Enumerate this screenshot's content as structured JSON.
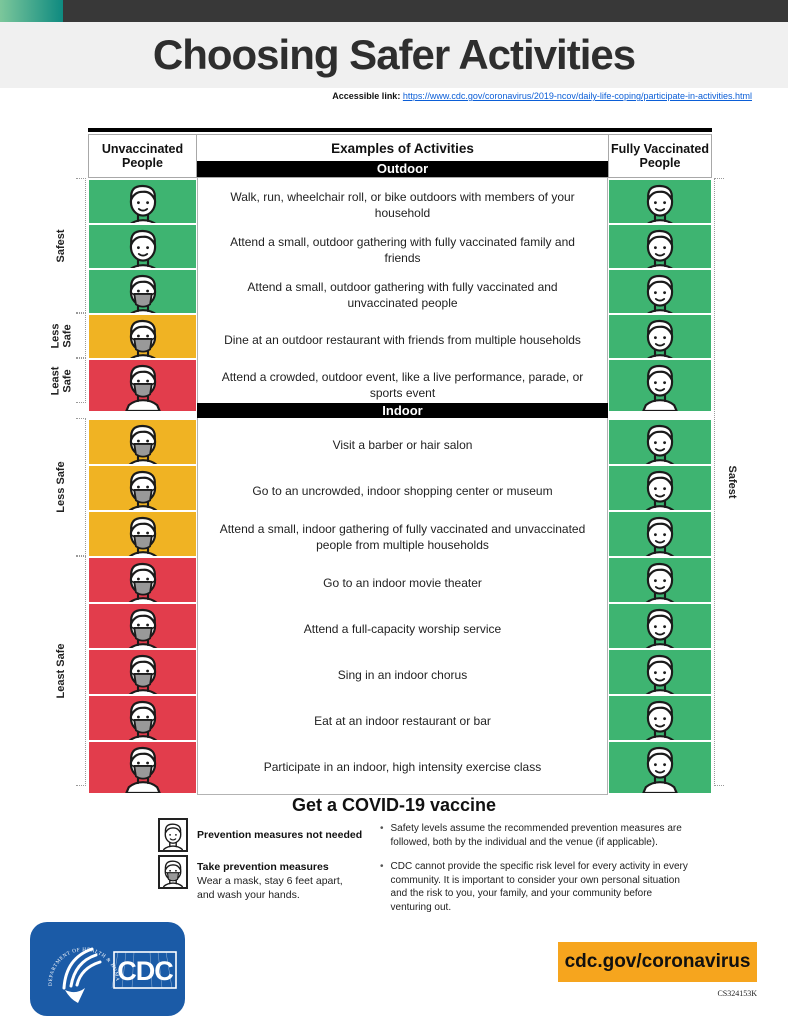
{
  "page": {
    "title": "Choosing Safer Activities",
    "accessible_link_label": "Accessible link:",
    "accessible_link_url": "https://www.cdc.gov/coronavirus/2019-ncov/daily-life-coping/participate-in-activities.html",
    "doc_id": "CS324153K",
    "footer_url": "cdc.gov/coronavirus",
    "cdc_logo_text": "CDC",
    "cdc_seal_text": "DEPARTMENT OF HEALTH & HUMAN SERVICES • USA"
  },
  "colors": {
    "green": "#3EB471",
    "yellow": "#F0B323",
    "red": "#E23D4C",
    "orange": "#F6A51E",
    "topbar": "#383838",
    "teal_start": "#7CC79B",
    "teal_end": "#0E8A80",
    "cdc_blue": "#1B5BA7",
    "mask_gray": "#999999"
  },
  "table": {
    "col_unvaccinated": "Unvaccinated People",
    "col_examples": "Examples of Activities",
    "col_vaccinated": "Fully Vaccinated People",
    "sections": [
      {
        "label": "Outdoor",
        "rows": [
          {
            "text": "Walk, run, wheelchair roll, or bike outdoors with members of your household",
            "unvaccinated": {
              "color": "green",
              "mask": false
            },
            "vaccinated": {
              "color": "green",
              "mask": false
            }
          },
          {
            "text": "Attend a small, outdoor gathering with fully vaccinated family and friends",
            "unvaccinated": {
              "color": "green",
              "mask": false
            },
            "vaccinated": {
              "color": "green",
              "mask": false
            }
          },
          {
            "text": "Attend a small, outdoor gathering with fully vaccinated and unvaccinated people",
            "unvaccinated": {
              "color": "green",
              "mask": true
            },
            "vaccinated": {
              "color": "green",
              "mask": false
            }
          },
          {
            "text": "Dine at an outdoor restaurant with friends from multiple households",
            "unvaccinated": {
              "color": "yellow",
              "mask": true
            },
            "vaccinated": {
              "color": "green",
              "mask": false
            }
          },
          {
            "text": "Attend a crowded, outdoor event, like a live performance, parade, or sports event",
            "unvaccinated": {
              "color": "red",
              "mask": true
            },
            "vaccinated": {
              "color": "green",
              "mask": false
            }
          }
        ]
      },
      {
        "label": "Indoor",
        "rows": [
          {
            "text": "Visit a barber or hair salon",
            "unvaccinated": {
              "color": "yellow",
              "mask": true
            },
            "vaccinated": {
              "color": "green",
              "mask": false
            }
          },
          {
            "text": "Go to an uncrowded, indoor shopping center or museum",
            "unvaccinated": {
              "color": "yellow",
              "mask": true
            },
            "vaccinated": {
              "color": "green",
              "mask": false
            }
          },
          {
            "text": "Attend a small, indoor gathering of fully vaccinated and unvaccinated people from multiple households",
            "unvaccinated": {
              "color": "yellow",
              "mask": true
            },
            "vaccinated": {
              "color": "green",
              "mask": false
            }
          },
          {
            "text": "Go to an indoor movie theater",
            "unvaccinated": {
              "color": "red",
              "mask": true
            },
            "vaccinated": {
              "color": "green",
              "mask": false
            }
          },
          {
            "text": "Attend a full-capacity worship service",
            "unvaccinated": {
              "color": "red",
              "mask": true
            },
            "vaccinated": {
              "color": "green",
              "mask": false
            }
          },
          {
            "text": "Sing in an indoor chorus",
            "unvaccinated": {
              "color": "red",
              "mask": true
            },
            "vaccinated": {
              "color": "green",
              "mask": false
            }
          },
          {
            "text": "Eat at an indoor restaurant or bar",
            "unvaccinated": {
              "color": "red",
              "mask": true
            },
            "vaccinated": {
              "color": "green",
              "mask": false
            }
          },
          {
            "text": "Participate in an indoor, high intensity exercise class",
            "unvaccinated": {
              "color": "red",
              "mask": true
            },
            "vaccinated": {
              "color": "green",
              "mask": false
            }
          }
        ]
      }
    ],
    "left_labels": [
      {
        "text": "Safest"
      },
      {
        "text": "Less Safe"
      },
      {
        "text": "Least Safe"
      },
      {
        "text": "Less Safe"
      },
      {
        "text": "Least Safe"
      }
    ],
    "right_label": "Safest"
  },
  "bottom": {
    "heading": "Get a COVID-19 vaccine",
    "legend": [
      {
        "label": "Prevention measures not needed",
        "mask": false,
        "sub": ""
      },
      {
        "label": "Take prevention measures",
        "mask": true,
        "sub": "Wear a mask, stay 6 feet apart, and wash your hands."
      }
    ],
    "bullets": [
      "Safety levels assume the recommended prevention measures are followed, both by the individual and the venue (if applicable).",
      "CDC cannot provide the specific risk level for every activity in every community. It is important to consider your own personal situation and the risk to you, your family, and your community before venturing out."
    ]
  }
}
